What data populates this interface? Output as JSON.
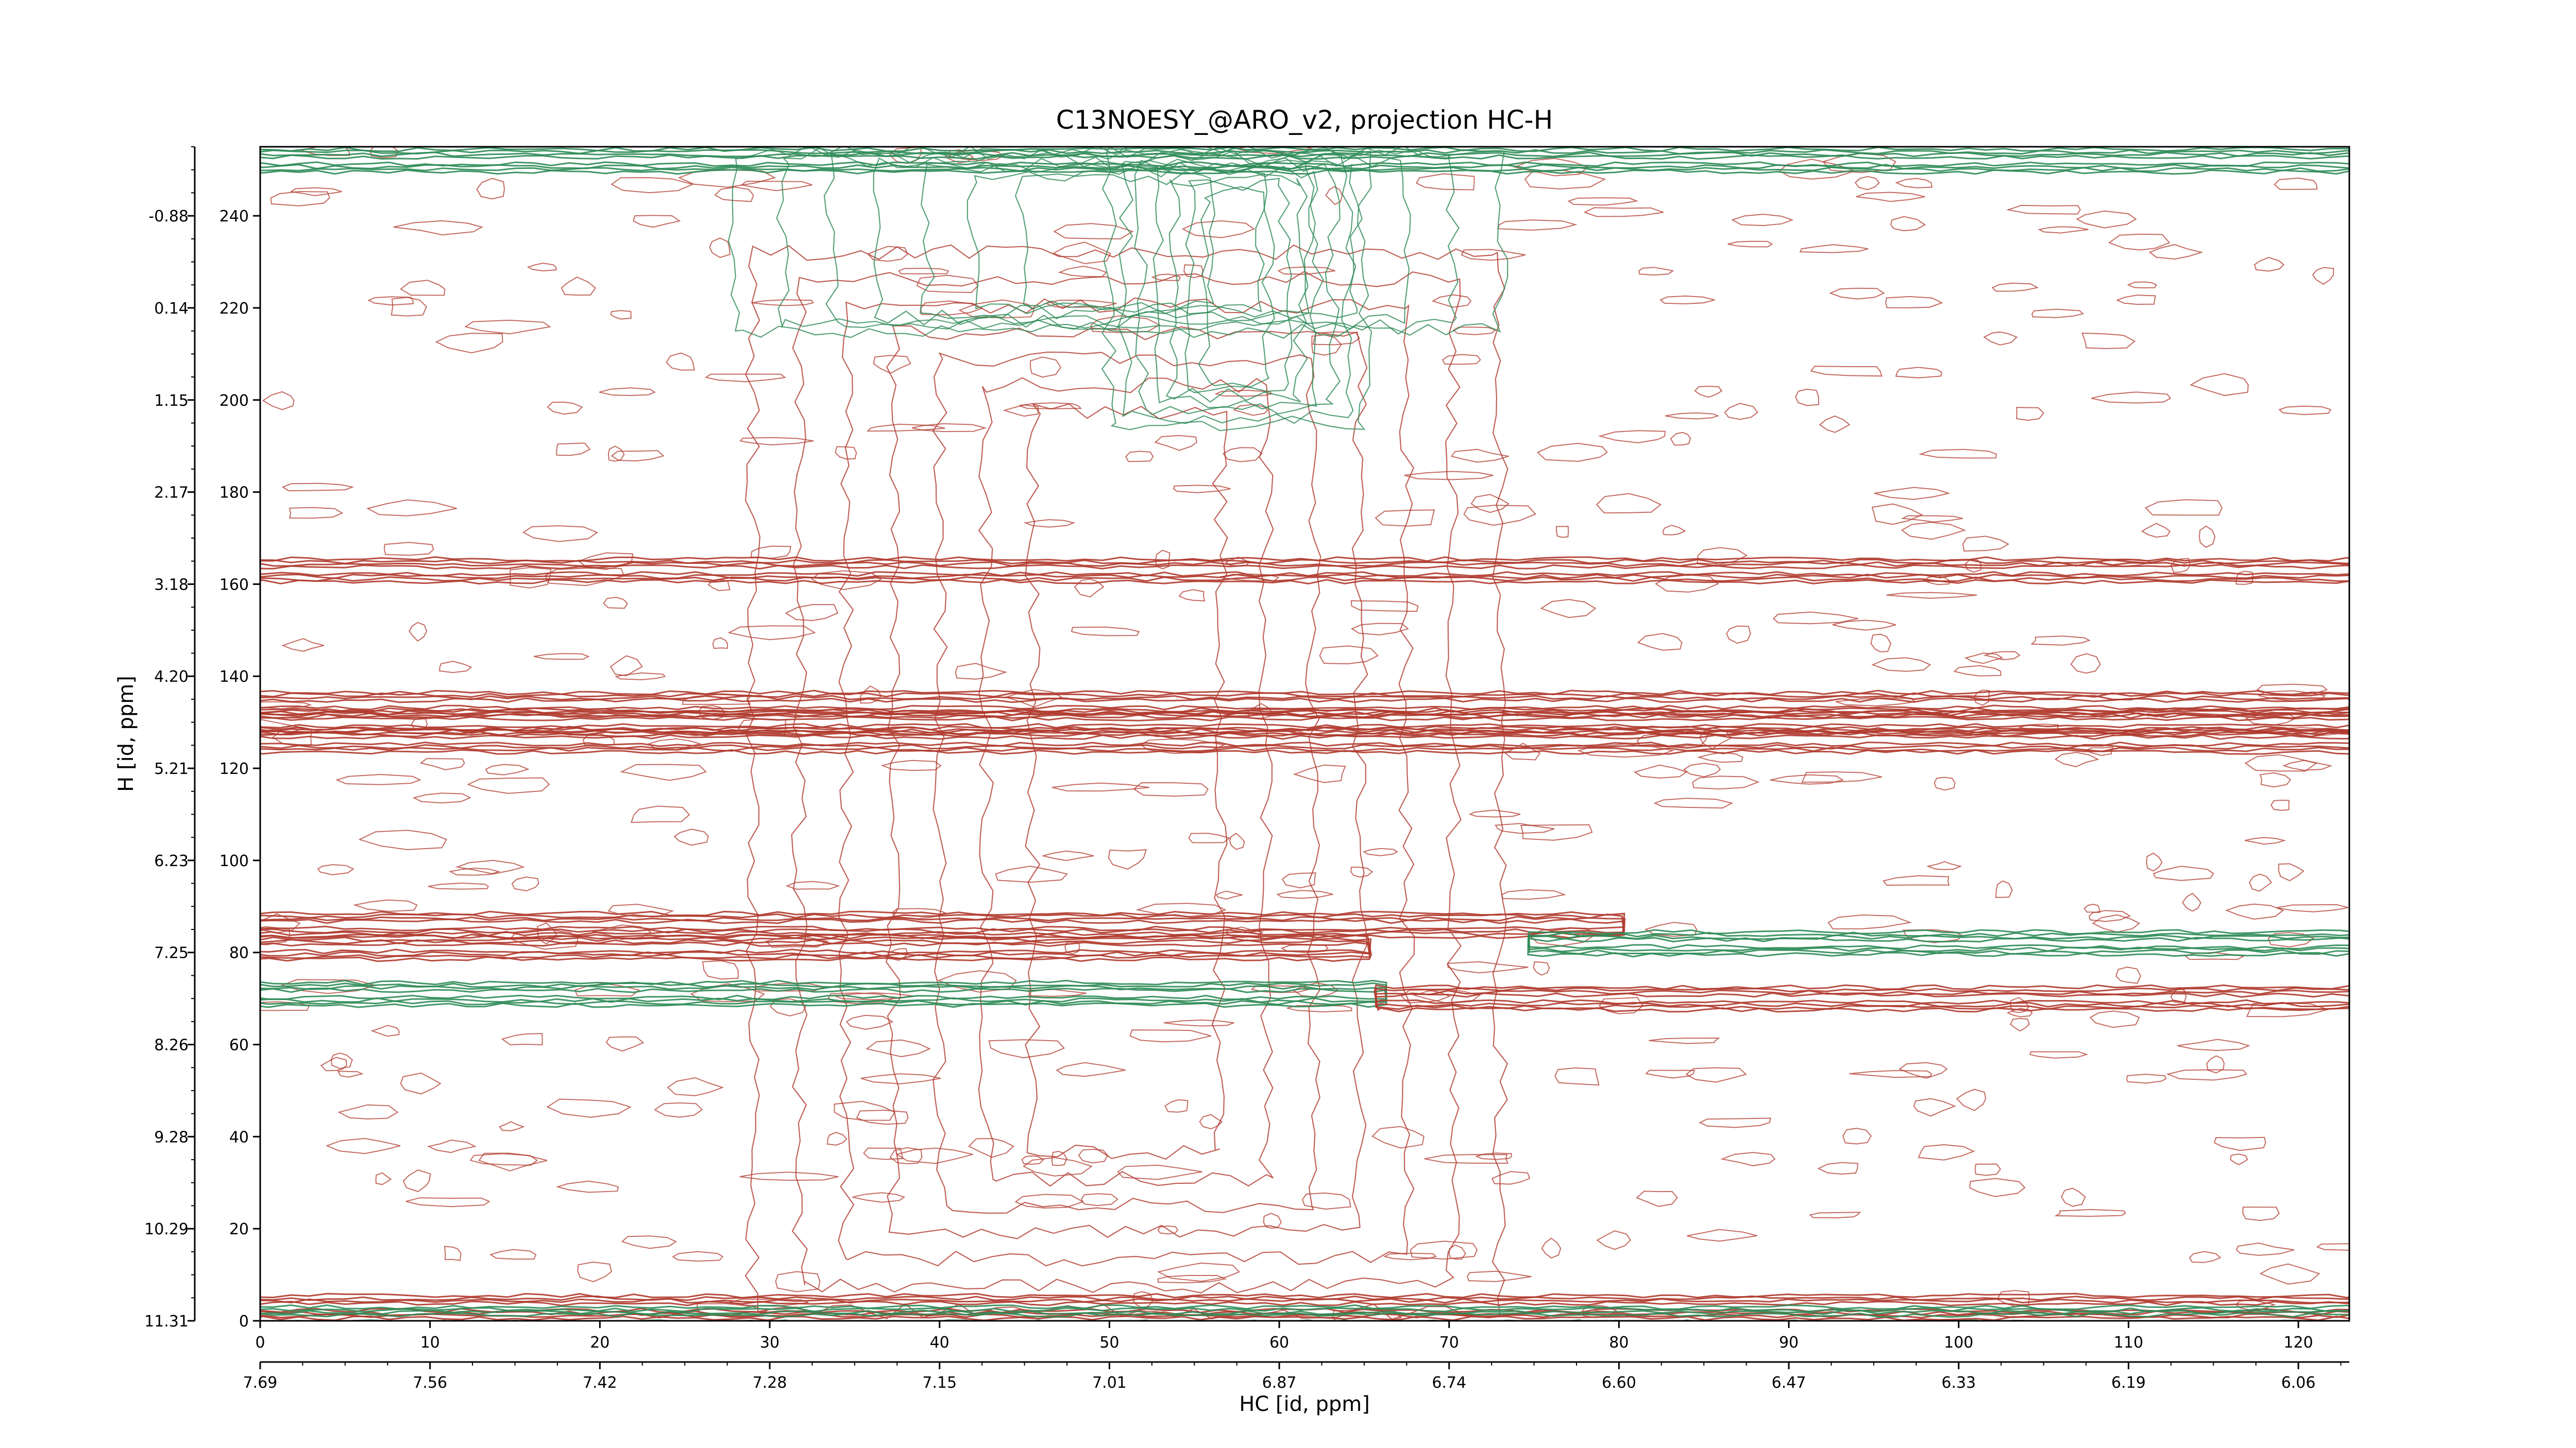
{
  "chart_data": {
    "type": "contour",
    "title": "C13NOESY_@ARO_v2, projection HC-H",
    "xlabel": "HC [id, ppm]",
    "ylabel": "H [id, ppm]",
    "xlim": [
      0,
      123
    ],
    "ylim": [
      0,
      255
    ],
    "xticks": [
      0,
      10,
      20,
      30,
      40,
      50,
      60,
      70,
      80,
      90,
      100,
      110,
      120
    ],
    "yticks": [
      0,
      20,
      40,
      60,
      80,
      100,
      120,
      140,
      160,
      180,
      200,
      220,
      240
    ],
    "x2ticks": [
      {
        "value": 0,
        "label": "7.69"
      },
      {
        "value": 10,
        "label": "7.56"
      },
      {
        "value": 20,
        "label": "7.42"
      },
      {
        "value": 30,
        "label": "7.28"
      },
      {
        "value": 40,
        "label": "7.15"
      },
      {
        "value": 50,
        "label": "7.01"
      },
      {
        "value": 60,
        "label": "6.87"
      },
      {
        "value": 70,
        "label": "6.74"
      },
      {
        "value": 80,
        "label": "6.60"
      },
      {
        "value": 90,
        "label": "6.47"
      },
      {
        "value": 100,
        "label": "6.33"
      },
      {
        "value": 110,
        "label": "6.19"
      },
      {
        "value": 120,
        "label": "6.06"
      }
    ],
    "y2ticks": [
      {
        "value": 0,
        "label": "11.31"
      },
      {
        "value": 20,
        "label": "10.29"
      },
      {
        "value": 40,
        "label": "9.28"
      },
      {
        "value": 60,
        "label": "8.26"
      },
      {
        "value": 80,
        "label": "7.25"
      },
      {
        "value": 100,
        "label": "6.23"
      },
      {
        "value": 120,
        "label": "5.21"
      },
      {
        "value": 140,
        "label": "4.20"
      },
      {
        "value": 160,
        "label": "3.18"
      },
      {
        "value": 180,
        "label": "2.17"
      },
      {
        "value": 200,
        "label": "1.15"
      },
      {
        "value": 220,
        "label": "0.14"
      },
      {
        "value": 240,
        "label": "-0.88"
      }
    ],
    "positive_color": "#b03a2e",
    "negative_color": "#2e8b57",
    "regions": [
      {
        "x": [
          29,
          73
        ],
        "y": [
          2,
          232
        ],
        "sign": "positive"
      },
      {
        "x": [
          50,
          65
        ],
        "y": [
          195,
          254
        ],
        "sign": "negative"
      },
      {
        "x": [
          28,
          73
        ],
        "y": [
          215,
          254
        ],
        "sign": "negative"
      }
    ],
    "ridges": [
      {
        "y": 252,
        "x": [
          0,
          123
        ],
        "sign": "negative"
      },
      {
        "y": 163,
        "x": [
          0,
          123
        ],
        "sign": "positive"
      },
      {
        "y": 134,
        "x": [
          0,
          123
        ],
        "sign": "positive"
      },
      {
        "y": 130,
        "x": [
          0,
          123
        ],
        "sign": "positive"
      },
      {
        "y": 126,
        "x": [
          0,
          123
        ],
        "sign": "positive"
      },
      {
        "y": 86,
        "x": [
          0,
          80
        ],
        "sign": "positive"
      },
      {
        "y": 81,
        "x": [
          0,
          65
        ],
        "sign": "positive"
      },
      {
        "y": 82,
        "x": [
          75,
          123
        ],
        "sign": "negative"
      },
      {
        "y": 71,
        "x": [
          0,
          66
        ],
        "sign": "negative"
      },
      {
        "y": 70,
        "x": [
          66,
          123
        ],
        "sign": "positive"
      },
      {
        "y": 3,
        "x": [
          0,
          123
        ],
        "sign": "positive"
      },
      {
        "y": 0.5,
        "x": [
          0,
          123
        ],
        "sign": "negative"
      }
    ]
  }
}
